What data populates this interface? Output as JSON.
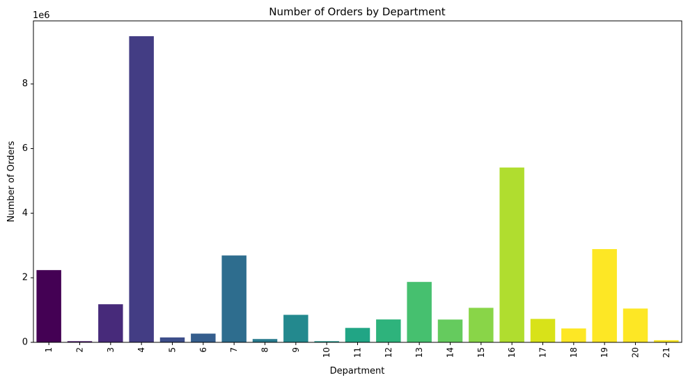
{
  "chart_data": {
    "type": "bar",
    "title": "Number of Orders by Department",
    "xlabel": "Department",
    "ylabel": "Number of Orders",
    "y_offset_label": "1e6",
    "y_scale": 1000000,
    "ylim": [
      0,
      9955000
    ],
    "y_ticks": [
      0,
      2000000,
      4000000,
      6000000,
      8000000
    ],
    "y_tick_labels": [
      "0",
      "2",
      "4",
      "6",
      "8"
    ],
    "grid": false,
    "categories": [
      "1",
      "2",
      "3",
      "4",
      "5",
      "6",
      "7",
      "8",
      "9",
      "10",
      "11",
      "12",
      "13",
      "14",
      "15",
      "16",
      "17",
      "18",
      "19",
      "20",
      "21"
    ],
    "values": [
      2237000,
      36000,
      1180000,
      9480000,
      152000,
      270000,
      2690000,
      103000,
      852000,
      36000,
      447000,
      709000,
      1871000,
      706000,
      1069000,
      5414000,
      726000,
      430000,
      2888000,
      1047000,
      67000
    ],
    "colors": [
      "#440154",
      "#481769",
      "#472a7a",
      "#433d84",
      "#3d4e8a",
      "#355e8d",
      "#2e6d8e",
      "#297b8e",
      "#23898e",
      "#1f978b",
      "#21a585",
      "#2eb37c",
      "#46c06f",
      "#65cb5e",
      "#89d548",
      "#b0dd2f",
      "#d8e219",
      "#fde725",
      "#fde725",
      "#fde725",
      "#fde725"
    ]
  }
}
